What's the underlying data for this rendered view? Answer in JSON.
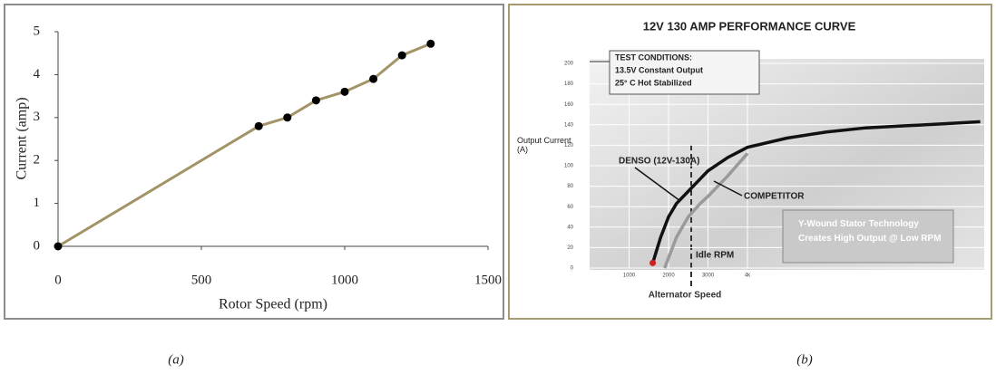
{
  "chart_data": [
    {
      "type": "line",
      "xlabel": "Rotor Speed (rpm)",
      "ylabel": "Current (amp)",
      "caption": "(a)",
      "xlim": [
        0,
        1500
      ],
      "xticks": [
        0,
        500,
        1000,
        1500
      ],
      "ylim": [
        0,
        5
      ],
      "yticks": [
        0,
        1,
        2,
        3,
        4,
        5
      ],
      "markers": true,
      "series": [
        {
          "color": "#a39467",
          "x": [
            0,
            700,
            800,
            900,
            1000,
            1100,
            1200,
            1300
          ],
          "values": [
            0,
            2.8,
            3.0,
            3.4,
            3.6,
            3.9,
            4.45,
            4.72
          ]
        }
      ]
    },
    {
      "type": "line",
      "title": "12V 130 AMP PERFORMANCE CURVE",
      "xlabel": "Alternator Speed",
      "ylabel": "Output Current (A)",
      "caption": "(b)",
      "xlim": [
        0,
        10000
      ],
      "xticks": [
        {
          "value": 1000,
          "label": "1000"
        },
        {
          "value": 2000,
          "label": "2000"
        },
        {
          "value": 3000,
          "label": "3000"
        },
        {
          "value": 4000,
          "label": "4k"
        }
      ],
      "ylim": [
        0,
        200
      ],
      "yticks": [
        0,
        20,
        40,
        60,
        80,
        100,
        120,
        140,
        160,
        180,
        200
      ],
      "markers": false,
      "annotations": [
        "TEST CONDITIONS:",
        "13.5V Constant Output",
        "25° C Hot Stabilized",
        "Y-Wound Stator Technology Creates High Output @ Low RPM",
        "Idle RPM"
      ],
      "series": [
        {
          "name": "DENSO (12V-130A)",
          "color": "#111111",
          "x": [
            1600,
            1800,
            2000,
            2200,
            2500,
            3000,
            3500,
            4000,
            5000,
            6000,
            7000,
            8000,
            9000,
            9900
          ],
          "values": [
            5,
            30,
            50,
            63,
            75,
            95,
            108,
            118,
            127,
            133,
            137,
            139,
            141,
            143
          ]
        },
        {
          "name": "COMPETITOR",
          "color": "#9a9a9a",
          "x": [
            1900,
            2000,
            2200,
            2500,
            2800,
            3000,
            3500,
            4000
          ],
          "values": [
            0,
            10,
            30,
            50,
            63,
            70,
            90,
            112
          ]
        }
      ]
    }
  ]
}
